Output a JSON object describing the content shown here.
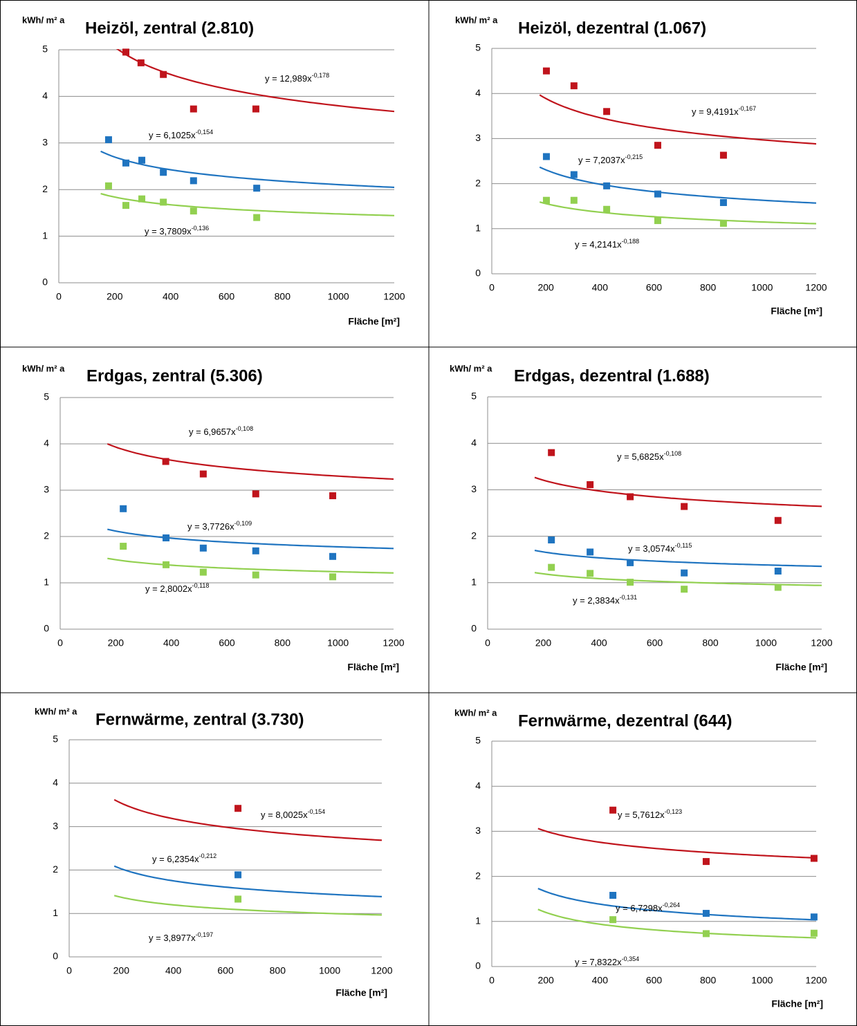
{
  "chart_data": [
    {
      "type": "scatter",
      "title": "Heizöl,  zentral (2.810)",
      "y_label": "kWh/ m² a",
      "x_label": "Fläche [m²]",
      "xlim": [
        0,
        1200
      ],
      "ylim": [
        0,
        5
      ],
      "xticks": [
        0,
        200,
        400,
        600,
        800,
        1000,
        1200
      ],
      "yticks": [
        0,
        1,
        2,
        3,
        4,
        5
      ],
      "grid": true,
      "series": [
        {
          "color": "#c0141c",
          "x": [
            240,
            294,
            374,
            482,
            705
          ],
          "values": [
            4.95,
            4.72,
            4.47,
            3.73,
            3.73
          ],
          "trend": {
            "a": 12.989,
            "b": -0.178,
            "label": "y = 12,989x",
            "exponent": "-0,178"
          }
        },
        {
          "color": "#1f74c0",
          "x": [
            178,
            240,
            297,
            374,
            482,
            708
          ],
          "values": [
            3.07,
            2.57,
            2.63,
            2.37,
            2.19,
            2.03
          ],
          "trend": {
            "a": 6.1025,
            "b": -0.154,
            "label": "y = 6,1025x",
            "exponent": "-0,154"
          }
        },
        {
          "color": "#92d050",
          "x": [
            178,
            240,
            297,
            374,
            482,
            708
          ],
          "values": [
            2.08,
            1.66,
            1.8,
            1.73,
            1.54,
            1.4
          ],
          "trend": {
            "a": 3.7809,
            "b": -0.136,
            "label": "y = 3,7809x",
            "exponent": "-0,136"
          }
        }
      ]
    },
    {
      "type": "scatter",
      "title": "Heizöl,  dezentral (1.067)",
      "y_label": "kWh/ m² a",
      "x_label": "Fläche [m²]",
      "xlim": [
        0,
        1200
      ],
      "ylim": [
        0,
        5
      ],
      "xticks": [
        0,
        200,
        400,
        600,
        800,
        1000,
        1200
      ],
      "yticks": [
        0,
        1,
        2,
        3,
        4,
        5
      ],
      "grid": true,
      "series": [
        {
          "color": "#c0141c",
          "x": [
            202,
            304,
            425,
            614,
            857
          ],
          "values": [
            4.5,
            4.17,
            3.6,
            2.85,
            2.63
          ],
          "trend": {
            "a": 9.4191,
            "b": -0.167,
            "label": "y = 9,4191x",
            "exponent": "-0,167"
          }
        },
        {
          "color": "#1f74c0",
          "x": [
            202,
            304,
            425,
            614,
            857
          ],
          "values": [
            2.6,
            2.2,
            1.95,
            1.77,
            1.58
          ],
          "trend": {
            "a": 7.2037,
            "b": -0.215,
            "label": "y = 7,2037x",
            "exponent": "-0,215"
          }
        },
        {
          "color": "#92d050",
          "x": [
            202,
            304,
            425,
            614,
            857
          ],
          "values": [
            1.63,
            1.63,
            1.43,
            1.18,
            1.12
          ],
          "trend": {
            "a": 4.2141,
            "b": -0.188,
            "label": "y = 4,2141x",
            "exponent": "-0,188"
          }
        }
      ]
    },
    {
      "type": "scatter",
      "title": "Erdgas, zentral (5.306)",
      "y_label": "kWh/ m² a",
      "x_label": "Fläche [m²]",
      "xlim": [
        0,
        1200
      ],
      "ylim": [
        0,
        5
      ],
      "xticks": [
        0,
        200,
        400,
        600,
        800,
        1000,
        1200
      ],
      "yticks": [
        0,
        1,
        2,
        3,
        4,
        5
      ],
      "grid": true,
      "series": [
        {
          "color": "#c0141c",
          "x": [
            380,
            515,
            704,
            981
          ],
          "values": [
            3.62,
            3.35,
            2.92,
            2.88
          ],
          "trend": {
            "a": 6.9657,
            "b": -0.108,
            "label": "y = 6,9657x",
            "exponent": "-0,108"
          }
        },
        {
          "color": "#1f74c0",
          "x": [
            227,
            381,
            515,
            704,
            981
          ],
          "values": [
            2.6,
            1.97,
            1.75,
            1.69,
            1.57
          ],
          "trend": {
            "a": 3.7726,
            "b": -0.109,
            "label": "y = 3,7726x",
            "exponent": "-0,109"
          }
        },
        {
          "color": "#92d050",
          "x": [
            227,
            381,
            515,
            704,
            981
          ],
          "values": [
            1.79,
            1.39,
            1.23,
            1.17,
            1.13
          ],
          "trend": {
            "a": 2.8002,
            "b": -0.118,
            "label": "y = 2,8002x",
            "exponent": "-0,118"
          }
        }
      ]
    },
    {
      "type": "scatter",
      "title": "Erdgas, dezentral (1.688)",
      "y_label": "kWh/ m² a",
      "x_label": "Fläche [m²]",
      "xlim": [
        0,
        1200
      ],
      "ylim": [
        0,
        5
      ],
      "xticks": [
        0,
        200,
        400,
        600,
        800,
        1000,
        1200
      ],
      "yticks": [
        0,
        1,
        2,
        3,
        4,
        5
      ],
      "grid": true,
      "series": [
        {
          "color": "#c0141c",
          "x": [
            229,
            368,
            512,
            706,
            1043
          ],
          "values": [
            3.8,
            3.11,
            2.85,
            2.64,
            2.34
          ],
          "trend": {
            "a": 5.6825,
            "b": -0.108,
            "label": "y = 5,6825x",
            "exponent": "-0,108"
          }
        },
        {
          "color": "#1f74c0",
          "x": [
            229,
            368,
            512,
            706,
            1043
          ],
          "values": [
            1.92,
            1.66,
            1.43,
            1.21,
            1.25
          ],
          "trend": {
            "a": 3.0574,
            "b": -0.115,
            "label": "y = 3,0574x",
            "exponent": "-0,115"
          }
        },
        {
          "color": "#92d050",
          "x": [
            229,
            368,
            512,
            706,
            1043
          ],
          "values": [
            1.33,
            1.2,
            1.01,
            0.86,
            0.9
          ],
          "trend": {
            "a": 2.3834,
            "b": -0.131,
            "label": "y = 2,3834x",
            "exponent": "-0,131"
          }
        }
      ]
    },
    {
      "type": "scatter",
      "title": "Fernwärme, zentral (3.730)",
      "y_label": "kWh/ m² a",
      "x_label": "Fläche [m²]",
      "xlim": [
        0,
        1200
      ],
      "ylim": [
        0,
        5
      ],
      "xticks": [
        0,
        200,
        400,
        600,
        800,
        1000,
        1200
      ],
      "yticks": [
        0,
        1,
        2,
        3,
        4,
        5
      ],
      "grid": true,
      "series": [
        {
          "color": "#c0141c",
          "x": [
            648
          ],
          "values": [
            3.42
          ],
          "trend": {
            "a": 8.0025,
            "b": -0.154,
            "label": "y = 8,0025x",
            "exponent": "-0,154"
          }
        },
        {
          "color": "#1f74c0",
          "x": [
            648
          ],
          "values": [
            1.89
          ],
          "trend": {
            "a": 6.2354,
            "b": -0.212,
            "label": "y = 6,2354x",
            "exponent": "-0,212"
          }
        },
        {
          "color": "#92d050",
          "x": [
            648
          ],
          "values": [
            1.33
          ],
          "trend": {
            "a": 3.8977,
            "b": -0.197,
            "label": "y = 3,8977x",
            "exponent": "-0,197"
          }
        }
      ]
    },
    {
      "type": "scatter",
      "title": "Fernwärme, dezentral (644)",
      "y_label": "kWh/ m² a",
      "x_label": "Fläche [m²]",
      "xlim": [
        0,
        1200
      ],
      "ylim": [
        0,
        5
      ],
      "xticks": [
        0,
        200,
        400,
        600,
        800,
        1000,
        1200
      ],
      "yticks": [
        0,
        1,
        2,
        3,
        4,
        5
      ],
      "grid": true,
      "series": [
        {
          "color": "#c0141c",
          "x": [
            448,
            793,
            1192
          ],
          "values": [
            3.47,
            2.33,
            2.4
          ],
          "trend": {
            "a": 5.7612,
            "b": -0.123,
            "label": "y = 5,7612x",
            "exponent": "-0,123"
          }
        },
        {
          "color": "#1f74c0",
          "x": [
            448,
            793,
            1192
          ],
          "values": [
            1.58,
            1.18,
            1.1
          ],
          "trend": {
            "a": 6.7298,
            "b": -0.264,
            "label": "y = 6,7298x",
            "exponent": "-0,264"
          }
        },
        {
          "color": "#92d050",
          "x": [
            448,
            793,
            1192
          ],
          "values": [
            1.04,
            0.73,
            0.74
          ],
          "trend": {
            "a": 7.8322,
            "b": -0.354,
            "label": "y = 7,8322x",
            "exponent": "-0,354"
          }
        }
      ]
    }
  ]
}
